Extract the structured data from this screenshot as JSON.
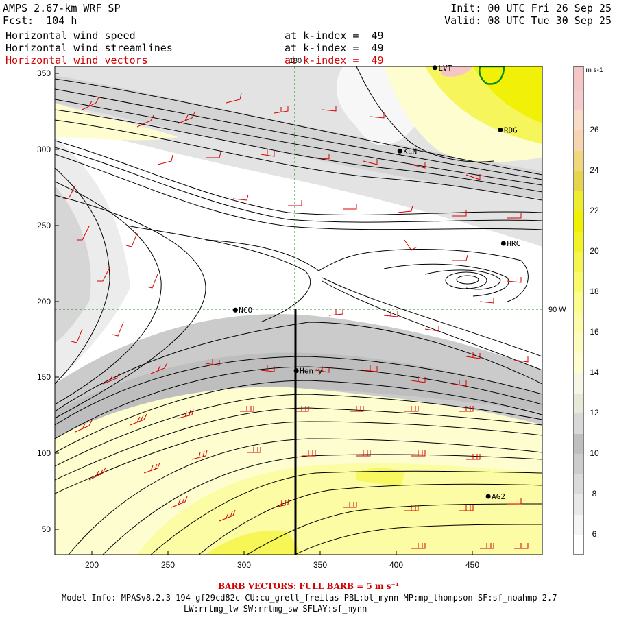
{
  "header": {
    "title": "AMPS 2.67-km WRF SP",
    "forecast": "Fcst:  104 h",
    "init": "Init: 00 UTC Fri 26 Sep 25",
    "valid": "Valid: 08 UTC Tue 30 Sep 25",
    "fields": [
      {
        "label": "Horizontal wind speed",
        "level": "at k-index =  49",
        "color": "#000000"
      },
      {
        "label": "Horizontal wind streamlines",
        "level": "at k-index =  49",
        "color": "#000000"
      },
      {
        "label": "Horizontal wind vectors",
        "level": "at k-index =  49",
        "color": "#d40000"
      }
    ]
  },
  "map": {
    "x_ticks": [
      "200",
      "250",
      "300",
      "350",
      "400",
      "450"
    ],
    "y_ticks": [
      "50",
      "100",
      "150",
      "200",
      "250",
      "300",
      "350"
    ],
    "meridian_label": "180",
    "meridian_90w_label": "90 W",
    "stations": [
      {
        "id": "NCO",
        "x": 294,
        "y": 195
      },
      {
        "id": "Henry",
        "x": 334,
        "y": 155
      },
      {
        "id": "KLN",
        "x": 402,
        "y": 300
      },
      {
        "id": "RDG",
        "x": 468,
        "y": 314
      },
      {
        "id": "HRC",
        "x": 470,
        "y": 239
      },
      {
        "id": "AG2",
        "x": 460,
        "y": 72
      },
      {
        "id": "LVT",
        "x": 425,
        "y": 355
      }
    ]
  },
  "colorbar": {
    "unit": "m s-1",
    "tick_labels": [
      "6",
      "8",
      "10",
      "12",
      "14",
      "16",
      "18",
      "20",
      "22",
      "24",
      "26"
    ],
    "colors": {
      "white": "#ffffff",
      "light_gray": "#e8e8e8",
      "gray": "#cccccc",
      "dark_gray": "#b3b3b3",
      "pale_yellow": "#fdfdd0",
      "yellow1": "#fcfc9c",
      "yellow2": "#f5f54f",
      "yellow3": "#f0f000",
      "gold": "#e8d34d",
      "peach": "#f8d4b0",
      "pink": "#f5c6c6"
    }
  },
  "footer": {
    "barb_note": "BARB VECTORS:  FULL BARB = 5 m s⁻¹",
    "model_info": "Model Info: MPASv8.2.3-194-gf29cd82c CU:cu_grell_freitas PBL:bl_mynn MP:mp_thompson SF:sf_noahmp 2.7",
    "model_info2": "LW:rrtmg_lw SW:rrtmg_sw SFLAY:sf_mynn"
  }
}
